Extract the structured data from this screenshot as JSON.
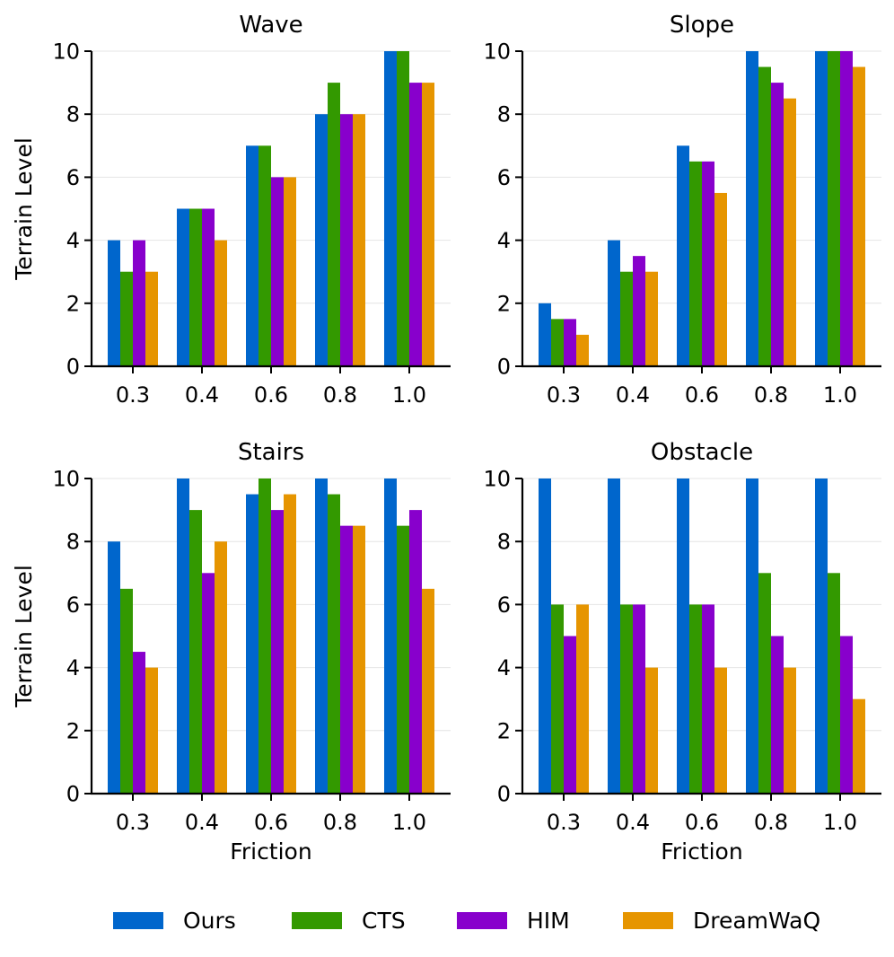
{
  "chart_data": [
    {
      "type": "bar",
      "title": "Wave",
      "xlabel": "",
      "ylabel": "Terrain Level",
      "categories": [
        "0.3",
        "0.4",
        "0.6",
        "0.8",
        "1.0"
      ],
      "ylim": [
        0,
        10
      ],
      "yticks": [
        "0",
        "2",
        "4",
        "6",
        "8",
        "10"
      ],
      "grid": true,
      "series": [
        {
          "name": "Ours",
          "values": [
            4,
            5,
            7,
            8,
            10
          ]
        },
        {
          "name": "CTS",
          "values": [
            3,
            5,
            7,
            9,
            10
          ]
        },
        {
          "name": "HIM",
          "values": [
            4,
            5,
            6,
            8,
            9
          ]
        },
        {
          "name": "DreamWaQ",
          "values": [
            3,
            4,
            6,
            8,
            9
          ]
        }
      ]
    },
    {
      "type": "bar",
      "title": "Slope",
      "xlabel": "",
      "ylabel": "",
      "categories": [
        "0.3",
        "0.4",
        "0.6",
        "0.8",
        "1.0"
      ],
      "ylim": [
        0,
        10
      ],
      "yticks": [
        "0",
        "2",
        "4",
        "6",
        "8",
        "10"
      ],
      "grid": true,
      "series": [
        {
          "name": "Ours",
          "values": [
            2,
            4,
            7,
            10,
            10
          ]
        },
        {
          "name": "CTS",
          "values": [
            1.5,
            3,
            6.5,
            9.5,
            10
          ]
        },
        {
          "name": "HIM",
          "values": [
            1.5,
            3.5,
            6.5,
            9,
            10
          ]
        },
        {
          "name": "DreamWaQ",
          "values": [
            1,
            3,
            5.5,
            8.5,
            9.5
          ]
        }
      ]
    },
    {
      "type": "bar",
      "title": "Stairs",
      "xlabel": "Friction",
      "ylabel": "Terrain Level",
      "categories": [
        "0.3",
        "0.4",
        "0.6",
        "0.8",
        "1.0"
      ],
      "ylim": [
        0,
        10
      ],
      "yticks": [
        "0",
        "2",
        "4",
        "6",
        "8",
        "10"
      ],
      "grid": true,
      "series": [
        {
          "name": "Ours",
          "values": [
            8,
            10,
            9.5,
            10,
            10
          ]
        },
        {
          "name": "CTS",
          "values": [
            6.5,
            9,
            10,
            9.5,
            8.5
          ]
        },
        {
          "name": "HIM",
          "values": [
            4.5,
            7,
            9,
            8.5,
            9
          ]
        },
        {
          "name": "DreamWaQ",
          "values": [
            4,
            8,
            9.5,
            8.5,
            6.5
          ]
        }
      ]
    },
    {
      "type": "bar",
      "title": "Obstacle",
      "xlabel": "Friction",
      "ylabel": "",
      "categories": [
        "0.3",
        "0.4",
        "0.6",
        "0.8",
        "1.0"
      ],
      "ylim": [
        0,
        10
      ],
      "yticks": [
        "0",
        "2",
        "4",
        "6",
        "8",
        "10"
      ],
      "grid": true,
      "series": [
        {
          "name": "Ours",
          "values": [
            10,
            10,
            10,
            10,
            10
          ]
        },
        {
          "name": "CTS",
          "values": [
            6,
            6,
            6,
            7,
            7
          ]
        },
        {
          "name": "HIM",
          "values": [
            5,
            6,
            6,
            5,
            5
          ]
        },
        {
          "name": "DreamWaQ",
          "values": [
            6,
            4,
            4,
            4,
            3
          ]
        }
      ]
    }
  ],
  "legend": {
    "position": "bottom-center",
    "items": [
      {
        "label": "Ours",
        "color": "#0066cc"
      },
      {
        "label": "CTS",
        "color": "#339900"
      },
      {
        "label": "HIM",
        "color": "#8800cc"
      },
      {
        "label": "DreamWaQ",
        "color": "#e69500"
      }
    ]
  }
}
